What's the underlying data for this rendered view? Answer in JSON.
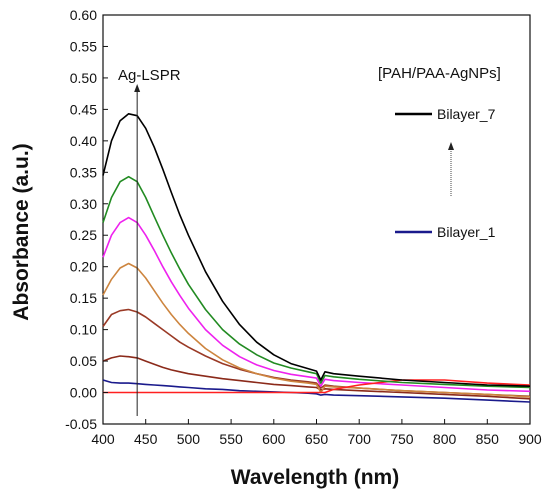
{
  "chart_data": {
    "type": "line",
    "xlabel": "Wavelength (nm)",
    "ylabel": "Absorbance (a.u.)",
    "xlim": [
      400,
      900
    ],
    "ylim": [
      -0.05,
      0.6
    ],
    "xticks": [
      400,
      450,
      500,
      550,
      600,
      650,
      700,
      750,
      800,
      850,
      900
    ],
    "yticks": [
      -0.05,
      0.0,
      0.05,
      0.1,
      0.15,
      0.2,
      0.25,
      0.3,
      0.35,
      0.4,
      0.45,
      0.5,
      0.55,
      0.6
    ],
    "ytick_labels": [
      "-0.05",
      "0.00",
      "0.05",
      "0.10",
      "0.15",
      "0.20",
      "0.25",
      "0.30",
      "0.35",
      "0.40",
      "0.45",
      "0.50",
      "0.55",
      "0.60"
    ],
    "x": [
      400,
      410,
      420,
      430,
      440,
      450,
      460,
      470,
      480,
      490,
      500,
      520,
      540,
      560,
      580,
      600,
      620,
      640,
      650,
      655,
      660,
      670,
      700,
      750,
      800,
      850,
      900
    ],
    "series": [
      {
        "name": "Bilayer_1",
        "color": "#1a1a8c",
        "values": [
          0.02,
          0.016,
          0.015,
          0.015,
          0.014,
          0.013,
          0.012,
          0.011,
          0.01,
          0.009,
          0.008,
          0.006,
          0.005,
          0.003,
          0.002,
          0.001,
          0.0,
          -0.001,
          -0.002,
          -0.004,
          -0.003,
          -0.004,
          -0.005,
          -0.007,
          -0.009,
          -0.012,
          -0.015
        ]
      },
      {
        "name": "",
        "color": "#8b2a1a",
        "values": [
          0.05,
          0.055,
          0.058,
          0.057,
          0.055,
          0.05,
          0.045,
          0.04,
          0.036,
          0.033,
          0.03,
          0.026,
          0.022,
          0.019,
          0.016,
          0.013,
          0.011,
          0.009,
          0.008,
          0.004,
          0.006,
          0.005,
          0.003,
          0.0,
          -0.003,
          -0.006,
          -0.01
        ]
      },
      {
        "name": "",
        "color": "#9a3a26",
        "values": [
          0.105,
          0.124,
          0.13,
          0.132,
          0.128,
          0.12,
          0.11,
          0.1,
          0.09,
          0.08,
          0.072,
          0.058,
          0.046,
          0.037,
          0.03,
          0.024,
          0.02,
          0.017,
          0.015,
          0.007,
          0.012,
          0.01,
          0.007,
          0.003,
          0.0,
          -0.003,
          -0.006
        ]
      },
      {
        "name": "",
        "color": "#cd853f",
        "values": [
          0.155,
          0.18,
          0.198,
          0.205,
          0.198,
          0.182,
          0.162,
          0.142,
          0.124,
          0.108,
          0.094,
          0.07,
          0.052,
          0.039,
          0.03,
          0.023,
          0.018,
          0.015,
          0.013,
          0.0,
          0.01,
          0.009,
          0.007,
          0.003,
          0.0,
          -0.003,
          -0.007
        ]
      },
      {
        "name": "",
        "color": "#ee22ee",
        "values": [
          0.215,
          0.25,
          0.27,
          0.278,
          0.27,
          0.25,
          0.226,
          0.2,
          0.176,
          0.154,
          0.134,
          0.1,
          0.075,
          0.057,
          0.044,
          0.035,
          0.029,
          0.025,
          0.023,
          0.01,
          0.021,
          0.019,
          0.016,
          0.012,
          0.008,
          0.004,
          0.002
        ]
      },
      {
        "name": "",
        "color": "#ff2020",
        "values": [
          0.0,
          0.0,
          0.0,
          0.0,
          0.0,
          0.0,
          0.0,
          0.0,
          0.0,
          0.0,
          0.0,
          0.0,
          0.0,
          0.0,
          0.0,
          0.0,
          0.0,
          0.0,
          0.0,
          0.0,
          0.0,
          0.005,
          0.012,
          0.02,
          0.02,
          0.015,
          0.012
        ]
      },
      {
        "name": "",
        "color": "#228b22",
        "values": [
          0.27,
          0.31,
          0.335,
          0.343,
          0.335,
          0.31,
          0.28,
          0.25,
          0.222,
          0.196,
          0.172,
          0.132,
          0.1,
          0.077,
          0.06,
          0.047,
          0.039,
          0.033,
          0.03,
          0.015,
          0.027,
          0.025,
          0.021,
          0.016,
          0.013,
          0.01,
          0.008
        ]
      },
      {
        "name": "Bilayer_7",
        "color": "#000000",
        "values": [
          0.345,
          0.4,
          0.432,
          0.443,
          0.44,
          0.42,
          0.39,
          0.355,
          0.318,
          0.282,
          0.25,
          0.192,
          0.145,
          0.108,
          0.08,
          0.06,
          0.046,
          0.038,
          0.034,
          0.02,
          0.033,
          0.03,
          0.026,
          0.02,
          0.016,
          0.012,
          0.01
        ]
      }
    ],
    "annotations": [
      {
        "text": "Ag-LSPR",
        "x": 440
      },
      {
        "text": "[PAH/PAA-AgNPs]"
      }
    ],
    "legend": {
      "placement": "top-right",
      "entries": [
        {
          "label": "Bilayer_7",
          "color": "#000000"
        },
        {
          "label": "Bilayer_1",
          "color": "#1a1a8c"
        }
      ]
    },
    "grid": false
  }
}
